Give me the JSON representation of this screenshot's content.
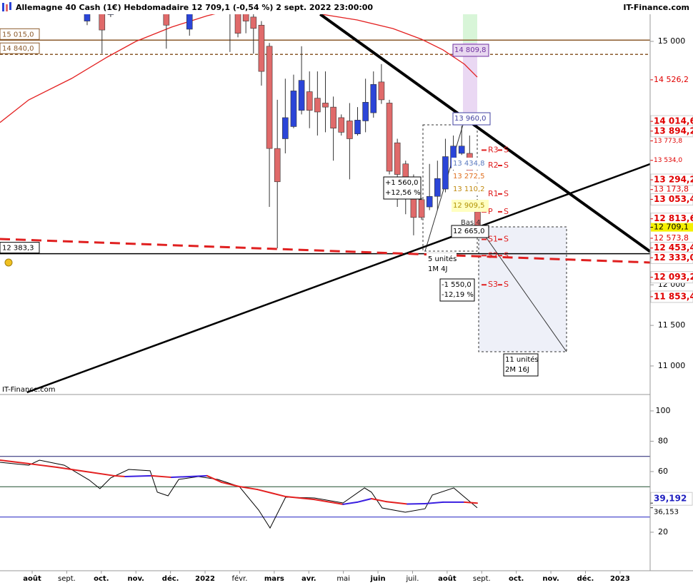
{
  "chart_data": {
    "type": "candlestick",
    "title": "Allemagne 40 Cash (1€) Hebdomadaire 12 709,1 (-0,54 %) 2 sept. 2022 23:00:00",
    "source": "IT-Finance.com",
    "xlim": [
      -0.93,
      17.87
    ],
    "xticks": [
      {
        "value": 0,
        "label": "août"
      },
      {
        "value": 1,
        "label": "sept."
      },
      {
        "value": 2,
        "label": "oct."
      },
      {
        "value": 3,
        "label": "nov."
      },
      {
        "value": 4,
        "label": "déc."
      },
      {
        "value": 5,
        "label": "2022"
      },
      {
        "value": 6,
        "label": "févr."
      },
      {
        "value": 7,
        "label": "mars"
      },
      {
        "value": 8,
        "label": "avr."
      },
      {
        "value": 9,
        "label": "mai"
      },
      {
        "value": 10,
        "label": "juin"
      },
      {
        "value": 11,
        "label": "juil."
      },
      {
        "value": 12,
        "label": "août"
      },
      {
        "value": 13,
        "label": "sept."
      },
      {
        "value": 14,
        "label": "oct."
      },
      {
        "value": 15,
        "label": "nov."
      },
      {
        "value": 16,
        "label": "déc."
      },
      {
        "value": 17,
        "label": "2023"
      }
    ],
    "ylim": [
      10648,
      15510
    ],
    "yticks": [
      {
        "value": 15000,
        "label": "15 000"
      },
      {
        "value": 12000,
        "label": "12 000"
      },
      {
        "value": 11500,
        "label": "11 500"
      },
      {
        "value": 11000,
        "label": "11 000"
      }
    ],
    "candles": {
      "up_color": "#2b45d8",
      "down_color": "#e06a6a",
      "x": [
        1.59,
        2.02,
        2.27,
        3.88,
        4.55,
        5.72,
        5.95,
        6.18,
        6.4,
        6.63,
        6.86,
        7.09,
        7.32,
        7.56,
        7.79,
        8.02,
        8.25,
        8.48,
        8.71,
        8.94,
        9.18,
        9.41,
        9.64,
        9.87,
        10.1,
        10.33,
        10.56,
        10.8,
        11.03,
        11.26,
        11.49,
        11.72,
        11.95,
        12.18,
        12.42,
        12.65,
        12.88
      ],
      "open": [
        15250,
        15400,
        15330,
        15450,
        15150,
        15500,
        15450,
        15350,
        15300,
        15200,
        14940,
        13680,
        13800,
        13950,
        14150,
        14380,
        14300,
        14240,
        14190,
        14060,
        14020,
        13860,
        14020,
        14120,
        14500,
        14240,
        13750,
        13490,
        13090,
        13050,
        12960,
        13090,
        13180,
        13440,
        13620,
        13620,
        12900
      ],
      "high": [
        15400,
        15450,
        15420,
        15500,
        15380,
        15550,
        15500,
        15400,
        15400,
        15250,
        14980,
        14280,
        14540,
        14590,
        14940,
        14630,
        14630,
        14630,
        14320,
        14100,
        14240,
        14190,
        14540,
        14630,
        14720,
        14280,
        13800,
        13530,
        13360,
        13070,
        13490,
        13530,
        13800,
        13840,
        13960,
        13840,
        13050
      ],
      "low": [
        15200,
        14850,
        15300,
        14910,
        15070,
        14870,
        15050,
        15100,
        14850,
        14455,
        12960,
        12450,
        13620,
        13930,
        14100,
        13930,
        13840,
        13880,
        13530,
        13840,
        13300,
        13840,
        13880,
        14060,
        14230,
        13360,
        12960,
        12870,
        12610,
        12800,
        12920,
        12920,
        13140,
        13400,
        13600,
        13270,
        12690
      ],
      "close": [
        15380,
        15140,
        15400,
        15200,
        15350,
        15400,
        15100,
        15250,
        15160,
        14630,
        13680,
        13270,
        14060,
        14390,
        14520,
        14150,
        14130,
        14190,
        13930,
        13880,
        13800,
        14030,
        14250,
        14470,
        14280,
        13400,
        13360,
        13070,
        12830,
        12830,
        13090,
        13310,
        13580,
        13710,
        13710,
        13310,
        12709.1
      ]
    },
    "moving_average": {
      "color": "#e32020",
      "x": [
        -0.93,
        -0.1,
        1.14,
        2.17,
        3.0,
        4.03,
        5.06,
        5.89,
        7.33,
        8.37,
        9.4,
        10.43,
        11.26,
        11.88,
        12.5,
        12.87
      ],
      "values": [
        14000,
        14279,
        14543,
        14807,
        15000,
        15176,
        15316,
        15400,
        15420,
        15334,
        15264,
        15158,
        15026,
        14895,
        14719,
        14560
      ]
    },
    "levels": [
      {
        "value": 15015.0,
        "label": "15 015,0",
        "color": "#8b5a2b",
        "style": "solid"
      },
      {
        "value": 14840.0,
        "label": "14 840,0",
        "color": "#8b5a2b",
        "style": "dashed"
      },
      {
        "value": 12383.3,
        "label": "12 383,3",
        "color": "#000000",
        "style": "solid"
      }
    ],
    "trendlines": [
      {
        "x": [
          8.33,
          17.87
        ],
        "values": [
          15334,
          12410
        ],
        "color": "#000000",
        "width": 4,
        "style": "solid"
      },
      {
        "x": [
          -0.15,
          17.87
        ],
        "values": [
          10675,
          13488
        ],
        "color": "#000000",
        "width": 2.5,
        "style": "solid"
      },
      {
        "x": [
          -0.93,
          17.87
        ],
        "values": [
          12565,
          12275
        ],
        "color": "#e02020",
        "width": 3,
        "style": "dashed"
      }
    ],
    "price_labels": [
      {
        "value": 14526.2,
        "label": "14 526,2",
        "style": "normal"
      },
      {
        "value": 14014.6,
        "label": "14 014,6",
        "style": "bold"
      },
      {
        "value": 13894.2,
        "label": "13 894,2",
        "style": "bold"
      },
      {
        "value": 13773.8,
        "label": "13 773,8",
        "style": "small"
      },
      {
        "value": 13534.0,
        "label": "13 534,0",
        "style": "small"
      },
      {
        "value": 13294.2,
        "label": "13 294,2",
        "style": "bold"
      },
      {
        "value": 13173.8,
        "label": "13 173,8",
        "style": "normal"
      },
      {
        "value": 13053.4,
        "label": "13 053,4",
        "style": "bold"
      },
      {
        "value": 12813.6,
        "label": "12 813,6",
        "style": "bold"
      },
      {
        "value": 12709.1,
        "label": "12 709,1",
        "style": "current"
      },
      {
        "value": 12573.8,
        "label": "12 573,8",
        "style": "normal"
      },
      {
        "value": 12453.4,
        "label": "12 453,4",
        "style": "bold"
      },
      {
        "value": 12333.0,
        "label": "12 333,0",
        "style": "bold"
      },
      {
        "value": 12093.2,
        "label": "12 093,2",
        "style": "bold"
      },
      {
        "value": 11853.4,
        "label": "11 853,4",
        "style": "bold"
      }
    ],
    "pivot_period": "S",
    "pivots": [
      {
        "name": "R3",
        "value": 13660
      },
      {
        "name": "R2",
        "value": 13470
      },
      {
        "name": "R1",
        "value": 13120
      },
      {
        "name": "P",
        "value": 12900
      },
      {
        "name": "S1",
        "value": 12560
      },
      {
        "name": "S2",
        "value": 12360
      },
      {
        "name": "S3",
        "value": 12000
      }
    ],
    "annotations": [
      {
        "lines": [
          "14 809,8"
        ]
      },
      {
        "lines": [
          "13 960,0"
        ]
      },
      {
        "lines": [
          "13 434,8"
        ]
      },
      {
        "lines": [
          "13 272,5"
        ]
      },
      {
        "lines": [
          "13 110,2"
        ]
      },
      {
        "lines": [
          "12 909,5"
        ]
      },
      {
        "lines": [
          "Bas 4"
        ]
      },
      {
        "lines": [
          "12 665,0"
        ]
      },
      {
        "lines": [
          "+1 560,0",
          "+12,56 %"
        ]
      },
      {
        "lines": [
          "5 unités",
          "1M 4J"
        ]
      },
      {
        "lines": [
          "-1 550,0",
          "-12,19 %"
        ]
      },
      {
        "lines": [
          "11 unités",
          "2M 16J"
        ]
      }
    ],
    "indicator": {
      "ylim": [
        -5.4,
        110.8
      ],
      "yticks": [
        100,
        80,
        60,
        20
      ],
      "levels": [
        {
          "value": 70,
          "color": "#1a1a6e"
        },
        {
          "value": 50,
          "color": "#1f4f2f"
        },
        {
          "value": 30,
          "color": "#2020c0"
        }
      ],
      "line": {
        "color": "#000000",
        "x": [
          -0.93,
          -0.1,
          0.21,
          0.93,
          1.65,
          1.96,
          2.27,
          2.79,
          3.41,
          3.62,
          3.93,
          4.24,
          4.81,
          5.37,
          5.99,
          6.55,
          6.88,
          7.33,
          8.16,
          8.99,
          9.61,
          9.81,
          10.12,
          10.79,
          11.36,
          11.57,
          12.19,
          12.46,
          12.87
        ],
        "values": [
          66.1,
          64.2,
          67.5,
          64.2,
          54.4,
          48.7,
          55.8,
          61.4,
          60.5,
          46.4,
          44.0,
          54.8,
          56.7,
          54.8,
          50.1,
          34.6,
          22.8,
          43.1,
          42.6,
          39.3,
          49.2,
          46.4,
          36.0,
          33.2,
          35.5,
          44.5,
          49.2,
          44.0,
          36.153
        ]
      },
      "average": {
        "rising_color": "#3a1fe0",
        "falling_color": "#e32020",
        "x": [
          -0.93,
          -0.1,
          0.72,
          1.55,
          2.38,
          2.69,
          3.45,
          4.03,
          4.55,
          5.06,
          5.48,
          5.99,
          6.51,
          7.33,
          8.16,
          8.99,
          9.4,
          9.81,
          10.23,
          10.85,
          11.36,
          11.88,
          12.5,
          12.87
        ],
        "values": [
          67.5,
          65.2,
          62.8,
          60.0,
          57.2,
          56.7,
          57.2,
          56.2,
          56.7,
          57.2,
          52.9,
          50.1,
          48.2,
          43.5,
          41.6,
          38.4,
          39.8,
          42.1,
          40.2,
          38.6,
          38.8,
          39.8,
          39.8,
          39.192
        ]
      },
      "last_labels": [
        {
          "value": 39.192,
          "label": "39,192",
          "style": "bold"
        },
        {
          "value": 36.153,
          "label": "36,153",
          "style": "normal"
        }
      ]
    }
  }
}
